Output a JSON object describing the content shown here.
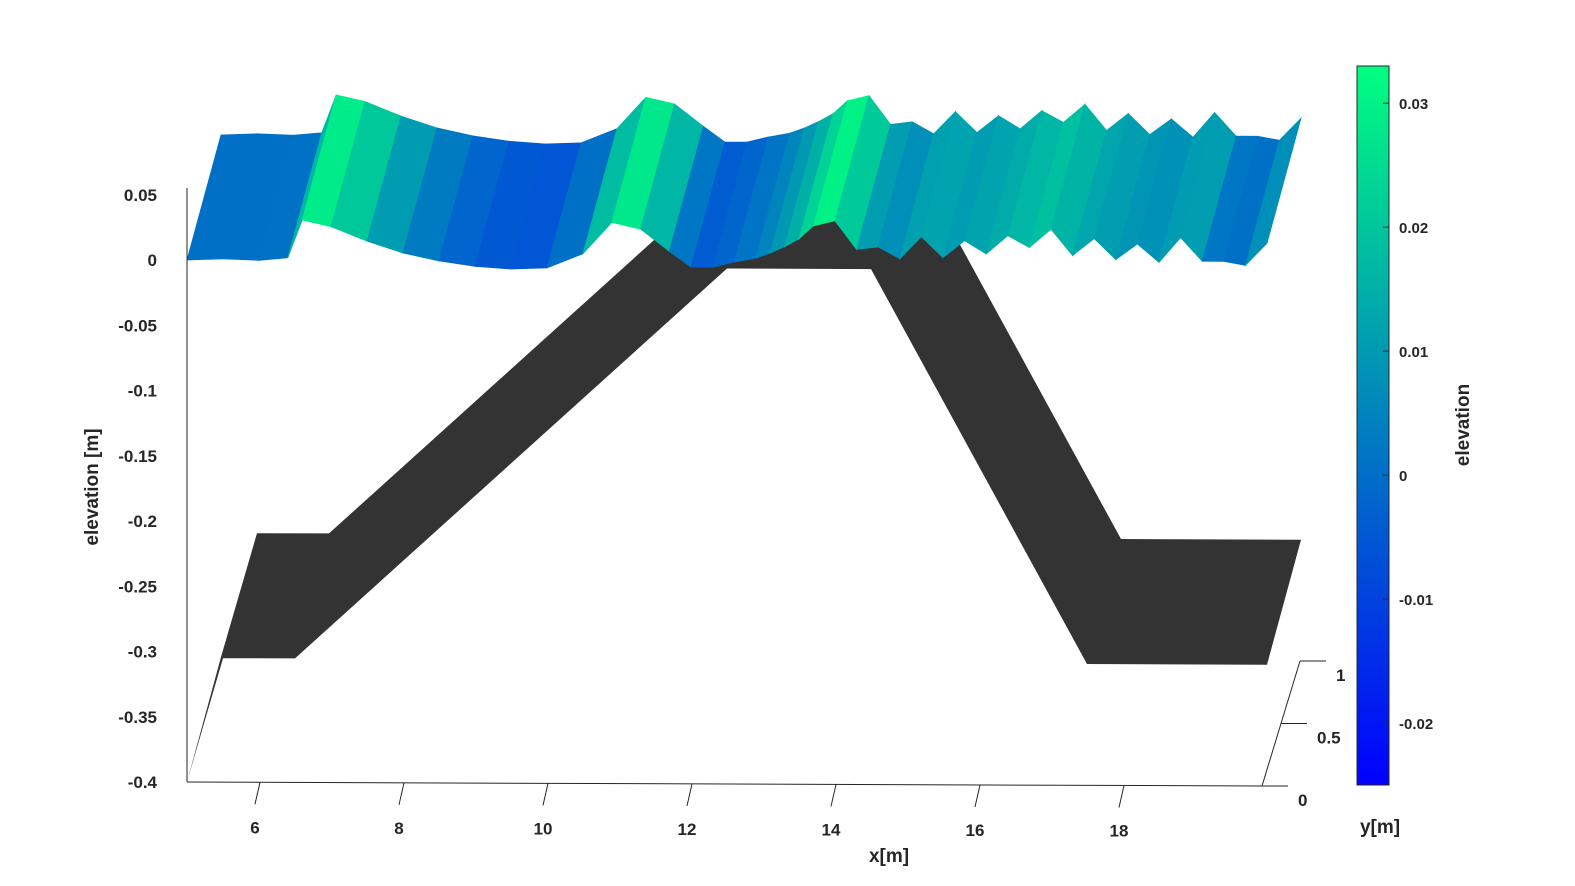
{
  "chart_data": {
    "type": "surface",
    "title": "",
    "xlabel": "x[m]",
    "ylabel": "y[m]",
    "zlabel": "elevation [m]",
    "xlim": [
      5,
      20
    ],
    "ylim": [
      0,
      1
    ],
    "zlim": [
      -0.4,
      0.06
    ],
    "x_ticks": [
      "6",
      "8",
      "10",
      "12",
      "14",
      "16",
      "18"
    ],
    "y_ticks": [
      "0",
      "0.5",
      "1"
    ],
    "z_ticks": [
      "0.05",
      "0",
      "-0.05",
      "-0.1",
      "-0.15",
      "-0.2",
      "-0.25",
      "-0.3",
      "-0.35",
      "-0.4"
    ],
    "bathymetry": {
      "color": "#333333",
      "x": [
        5,
        5.5,
        6.5,
        12.5,
        14.5,
        17.5,
        20
      ],
      "z": [
        -0.4,
        -0.305,
        -0.305,
        -0.005,
        -0.005,
        -0.307,
        -0.307
      ]
    },
    "free_surface": {
      "x": [
        5.0,
        5.5,
        6.0,
        6.4,
        6.6,
        7.0,
        7.5,
        8.0,
        8.5,
        9.0,
        9.5,
        10.0,
        10.5,
        10.9,
        11.3,
        11.7,
        12.0,
        12.3,
        12.6,
        12.9,
        13.1,
        13.3,
        13.5,
        13.7,
        14.0,
        14.3,
        14.6,
        14.9,
        15.2,
        15.5,
        15.8,
        16.1,
        16.4,
        16.7,
        17.0,
        17.3,
        17.6,
        17.9,
        18.2,
        18.5,
        18.8,
        19.1,
        19.4,
        19.7,
        20.0
      ],
      "z": [
        0.0,
        0.001,
        0.0,
        0.002,
        0.031,
        0.026,
        0.015,
        0.006,
        0.0,
        -0.004,
        -0.006,
        -0.005,
        0.006,
        0.03,
        0.025,
        0.008,
        -0.004,
        -0.004,
        0.0,
        0.003,
        0.007,
        0.012,
        0.018,
        0.028,
        0.032,
        0.01,
        0.012,
        0.003,
        0.02,
        0.004,
        0.017,
        0.007,
        0.021,
        0.012,
        0.026,
        0.006,
        0.019,
        0.003,
        0.015,
        0.001,
        0.02,
        0.002,
        0.002,
        -0.001,
        0.016
      ]
    },
    "colorbar": {
      "label": "elevation",
      "min": -0.025,
      "max": 0.033,
      "ticks": [
        "0.03",
        "0.02",
        "0.01",
        "0",
        "-0.01",
        "-0.02"
      ],
      "tick_values": [
        0.03,
        0.02,
        0.01,
        0,
        -0.01,
        -0.02
      ],
      "colormap": "winter",
      "color_low": "#0000ff",
      "color_high": "#00ff80"
    },
    "grid": false,
    "view": "3d"
  }
}
